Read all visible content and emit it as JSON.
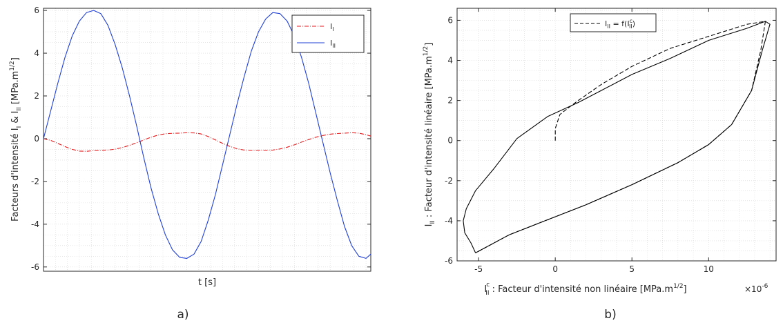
{
  "panels": {
    "a": {
      "label": "a)"
    },
    "b": {
      "label": "b)"
    }
  },
  "chart_data": [
    {
      "type": "line",
      "xlabel": "t [s]",
      "ylabel": {
        "main": "Facteurs d'intensité I",
        "sub1": "I",
        "amp": " & I",
        "sub2": "II",
        "unit": " [MPa.m",
        "sup": "1/2",
        "close": "]"
      },
      "xlim": [
        0,
        13.7
      ],
      "ylim": [
        -6.2,
        6.1
      ],
      "yticks": [
        6,
        4,
        2,
        0,
        -2,
        -4,
        -6
      ],
      "ytick_labels": [
        "6",
        "4",
        "2",
        "0",
        "-2",
        "-4",
        "-6"
      ],
      "grid": true,
      "legend": {
        "position": "top-right"
      },
      "series": [
        {
          "name": "I",
          "name_sub": "I",
          "color": "#e41a1c",
          "dash": "dashdot",
          "x": [
            0.0,
            0.3,
            0.6,
            0.9,
            1.2,
            1.5,
            1.8,
            2.1,
            2.4,
            2.7,
            3.0,
            3.3,
            3.6,
            3.9,
            4.2,
            4.5,
            4.8,
            5.1,
            5.4,
            5.7,
            6.0,
            6.3,
            6.6,
            6.9,
            7.2,
            7.5,
            7.8,
            8.1,
            8.4,
            8.7,
            9.0,
            9.3,
            9.6,
            9.9,
            10.2,
            10.5,
            10.8,
            11.1,
            11.4,
            11.7,
            12.0,
            12.3,
            12.6,
            12.9,
            13.2,
            13.5,
            13.7
          ],
          "y": [
            0.0,
            -0.08,
            -0.22,
            -0.37,
            -0.5,
            -0.58,
            -0.59,
            -0.56,
            -0.54,
            -0.53,
            -0.49,
            -0.41,
            -0.31,
            -0.19,
            -0.06,
            0.07,
            0.17,
            0.23,
            0.25,
            0.26,
            0.28,
            0.27,
            0.22,
            0.1,
            -0.06,
            -0.22,
            -0.36,
            -0.47,
            -0.53,
            -0.55,
            -0.55,
            -0.55,
            -0.53,
            -0.48,
            -0.4,
            -0.29,
            -0.16,
            -0.04,
            0.07,
            0.15,
            0.21,
            0.24,
            0.26,
            0.28,
            0.26,
            0.19,
            0.12
          ]
        },
        {
          "name": "I",
          "name_sub": "II",
          "color": "#1f3fd6",
          "dash": "solid",
          "x": [
            0.0,
            0.3,
            0.6,
            0.9,
            1.2,
            1.5,
            1.8,
            2.1,
            2.4,
            2.7,
            3.0,
            3.3,
            3.6,
            3.9,
            4.2,
            4.5,
            4.8,
            5.1,
            5.4,
            5.7,
            6.0,
            6.3,
            6.6,
            6.9,
            7.2,
            7.5,
            7.8,
            8.1,
            8.4,
            8.7,
            9.0,
            9.3,
            9.6,
            9.9,
            10.2,
            10.5,
            10.8,
            11.1,
            11.4,
            11.7,
            12.0,
            12.3,
            12.6,
            12.9,
            13.2,
            13.5,
            13.7
          ],
          "y": [
            0.0,
            1.3,
            2.6,
            3.8,
            4.8,
            5.5,
            5.9,
            6.0,
            5.85,
            5.3,
            4.4,
            3.3,
            2.0,
            0.6,
            -0.9,
            -2.3,
            -3.5,
            -4.5,
            -5.2,
            -5.55,
            -5.6,
            -5.4,
            -4.8,
            -3.8,
            -2.6,
            -1.2,
            0.2,
            1.6,
            2.9,
            4.1,
            5.0,
            5.6,
            5.9,
            5.85,
            5.5,
            4.8,
            3.8,
            2.6,
            1.2,
            -0.2,
            -1.6,
            -2.9,
            -4.1,
            -5.0,
            -5.5,
            -5.6,
            -5.4
          ]
        }
      ]
    },
    {
      "type": "line",
      "xlabel": {
        "sym": "I",
        "sub": "II",
        "sup": "c",
        "text": " : Facteur d'intensité non linéaire [MPa.m",
        "unit_sup": "1/2",
        "close": "]"
      },
      "x_exponent_label": "×10",
      "x_exponent_power": "-6",
      "ylabel": {
        "sym": "I",
        "sub": "II",
        "text": " : Facteur d'intensité linéaire [MPa.m",
        "sup": "1/2",
        "close": "]"
      },
      "xlim": [
        -6.4,
        14.4
      ],
      "ylim": [
        -6.0,
        6.6
      ],
      "xticks": [
        -5,
        0,
        5,
        10
      ],
      "xtick_labels": [
        "-5",
        "0",
        "5",
        "10"
      ],
      "yticks": [
        6,
        4,
        2,
        0,
        -2,
        -4,
        -6
      ],
      "ytick_labels": [
        "6",
        "4",
        "2",
        "0",
        "-2",
        "-4",
        "-6"
      ],
      "grid": true,
      "legend": {
        "position": "top-left",
        "text_prefix": "I",
        "text_sub": "II",
        "text_mid": " = f(I",
        "text_sub2": "II",
        "text_sup2": "c",
        "text_end": ")"
      },
      "series": [
        {
          "name": "I_II = f(I_II^c)",
          "color": "#000000",
          "dash": "dashed",
          "x": [
            0.0,
            0.0,
            0.3,
            0.8,
            1.5,
            3.0,
            5.0,
            7.5,
            10.0,
            12.5,
            13.7,
            13.4,
            12.8,
            11.5,
            10.0,
            8.0,
            5.0,
            2.0,
            -1.0,
            -3.0,
            -5.2
          ],
          "y": [
            0.0,
            0.6,
            1.3,
            1.6,
            2.0,
            2.8,
            3.7,
            4.6,
            5.2,
            5.8,
            5.95,
            4.5,
            2.5,
            0.8,
            -0.2,
            -1.1,
            -2.2,
            -3.2,
            -4.1,
            -4.7,
            -5.6
          ]
        },
        {
          "name": "",
          "color": "#000000",
          "dash": "solid",
          "x": [
            -5.2,
            -3.0,
            -1.0,
            2.0,
            5.0,
            8.0,
            10.0,
            11.5,
            12.8,
            13.5,
            14.0,
            13.7,
            12.5,
            10.0,
            7.5,
            5.0,
            3.0,
            1.5,
            -0.5,
            -2.5,
            -4.0,
            -5.2,
            -5.8,
            -6.0,
            -5.9,
            -5.5,
            -5.2
          ],
          "y": [
            -5.6,
            -4.7,
            -4.1,
            -3.2,
            -2.2,
            -1.1,
            -0.2,
            0.8,
            2.5,
            4.5,
            5.8,
            5.95,
            5.6,
            5.0,
            4.1,
            3.3,
            2.5,
            1.9,
            1.2,
            0.1,
            -1.4,
            -2.5,
            -3.4,
            -4.0,
            -4.6,
            -5.1,
            -5.6
          ]
        }
      ]
    }
  ]
}
